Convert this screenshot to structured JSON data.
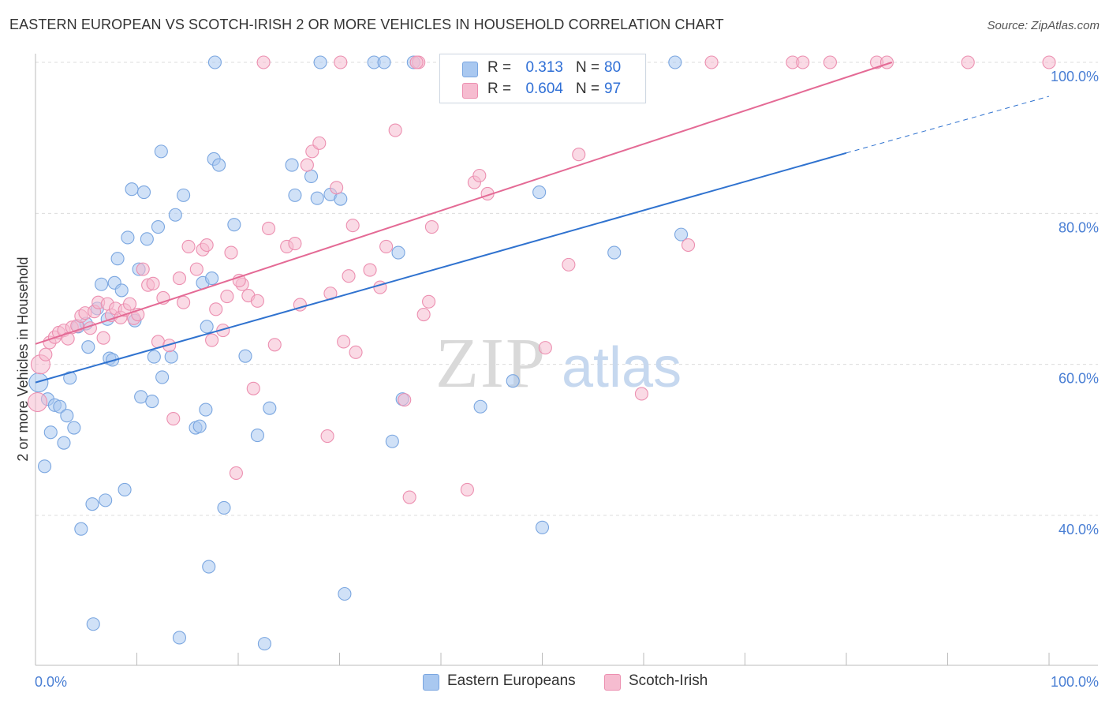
{
  "title": "EASTERN EUROPEAN VS SCOTCH-IRISH 2 OR MORE VEHICLES IN HOUSEHOLD CORRELATION CHART",
  "source": "Source: ZipAtlas.com",
  "watermark": {
    "zip": "ZIP",
    "atlas": "atlas"
  },
  "legend": {
    "rows": [
      {
        "r_label": "R =",
        "r_value": "0.313",
        "n_label": "N =",
        "n_value": "80",
        "color": "#a9c8f0",
        "border": "#7aa6e0"
      },
      {
        "r_label": "R =",
        "r_value": "0.604",
        "n_label": "N =",
        "n_value": "97",
        "color": "#f6bcd0",
        "border": "#ec8fb0"
      }
    ]
  },
  "bottom_legend": [
    {
      "label": "Eastern Europeans",
      "color": "#a9c8f0",
      "border": "#7aa6e0"
    },
    {
      "label": "Scotch-Irish",
      "color": "#f6bcd0",
      "border": "#ec8fb0"
    }
  ],
  "chart_data": {
    "type": "scatter",
    "title": "EASTERN EUROPEAN VS SCOTCH-IRISH 2 OR MORE VEHICLES IN HOUSEHOLD CORRELATION CHART",
    "xlabel": "",
    "ylabel": "2 or more Vehicles in Household",
    "xlim": [
      0,
      100
    ],
    "ylim": [
      23,
      101
    ],
    "x_tick_labels": [
      "0.0%",
      "100.0%"
    ],
    "y_ticks": [
      40,
      60,
      80,
      100
    ],
    "y_tick_labels": [
      "40.0%",
      "60.0%",
      "80.0%",
      "100.0%"
    ],
    "grid": true,
    "series": [
      {
        "name": "Eastern Europeans",
        "color": "#7aa6e0",
        "fill": "#a9c8f0",
        "trend": {
          "x0": 0,
          "y0": 57.6,
          "x1": 80,
          "y1": 88.0,
          "dash_to_x": 100,
          "dash_to_y": 95.5,
          "line_color": "#2f72cf"
        },
        "points": [
          [
            0.3,
            57.6
          ],
          [
            0.9,
            46.5
          ],
          [
            1.2,
            55.4
          ],
          [
            1.5,
            51.0
          ],
          [
            1.9,
            54.6
          ],
          [
            2.4,
            54.4
          ],
          [
            2.8,
            49.6
          ],
          [
            3.1,
            53.2
          ],
          [
            3.4,
            58.2
          ],
          [
            3.8,
            51.6
          ],
          [
            4.2,
            65.0
          ],
          [
            4.5,
            38.2
          ],
          [
            5.0,
            65.4
          ],
          [
            5.2,
            62.3
          ],
          [
            5.6,
            41.5
          ],
          [
            5.7,
            25.6
          ],
          [
            6.1,
            67.4
          ],
          [
            6.5,
            70.6
          ],
          [
            6.9,
            42.0
          ],
          [
            7.1,
            66.0
          ],
          [
            7.3,
            60.8
          ],
          [
            7.6,
            60.6
          ],
          [
            7.8,
            70.8
          ],
          [
            8.1,
            74.0
          ],
          [
            8.5,
            69.8
          ],
          [
            8.8,
            43.4
          ],
          [
            9.1,
            76.8
          ],
          [
            9.5,
            83.2
          ],
          [
            9.8,
            65.8
          ],
          [
            10.2,
            72.6
          ],
          [
            10.4,
            55.7
          ],
          [
            10.7,
            82.8
          ],
          [
            11.0,
            76.6
          ],
          [
            11.5,
            55.1
          ],
          [
            11.7,
            61.0
          ],
          [
            12.1,
            78.2
          ],
          [
            12.4,
            88.2
          ],
          [
            12.5,
            58.3
          ],
          [
            13.4,
            61.0
          ],
          [
            13.8,
            79.8
          ],
          [
            14.2,
            23.8
          ],
          [
            14.6,
            82.4
          ],
          [
            15.8,
            51.6
          ],
          [
            16.2,
            51.8
          ],
          [
            16.5,
            70.8
          ],
          [
            16.8,
            54.0
          ],
          [
            16.9,
            65.0
          ],
          [
            17.1,
            33.2
          ],
          [
            17.4,
            71.4
          ],
          [
            17.6,
            87.2
          ],
          [
            18.1,
            86.4
          ],
          [
            18.6,
            41.0
          ],
          [
            19.6,
            78.5
          ],
          [
            20.7,
            61.1
          ],
          [
            21.9,
            50.6
          ],
          [
            22.6,
            23.0
          ],
          [
            23.1,
            54.2
          ],
          [
            25.3,
            86.4
          ],
          [
            25.6,
            82.4
          ],
          [
            27.2,
            84.9
          ],
          [
            27.8,
            82.0
          ],
          [
            28.1,
            100.0
          ],
          [
            29.1,
            82.5
          ],
          [
            30.1,
            81.9
          ],
          [
            30.5,
            29.6
          ],
          [
            33.4,
            100.0
          ],
          [
            34.4,
            100.0
          ],
          [
            35.2,
            49.8
          ],
          [
            35.8,
            74.8
          ],
          [
            36.2,
            55.4
          ],
          [
            37.3,
            100.0
          ],
          [
            41.0,
            100.0
          ],
          [
            43.9,
            54.4
          ],
          [
            47.1,
            57.8
          ],
          [
            49.7,
            82.8
          ],
          [
            50.0,
            38.4
          ],
          [
            57.1,
            74.8
          ],
          [
            63.7,
            77.2
          ],
          [
            63.1,
            100.0
          ],
          [
            17.7,
            100.0
          ]
        ]
      },
      {
        "name": "Scotch-Irish",
        "color": "#ec8fb0",
        "fill": "#f6bcd0",
        "trend": {
          "x0": 0,
          "y0": 62.7,
          "x1": 84.5,
          "y1": 100.0,
          "line_color": "#e46a95"
        },
        "points": [
          [
            0.2,
            55.0
          ],
          [
            0.5,
            60.0
          ],
          [
            1.0,
            61.3
          ],
          [
            1.4,
            62.9
          ],
          [
            1.9,
            63.6
          ],
          [
            2.3,
            64.2
          ],
          [
            2.8,
            64.5
          ],
          [
            3.2,
            63.4
          ],
          [
            3.6,
            64.9
          ],
          [
            4.1,
            65.1
          ],
          [
            4.5,
            66.4
          ],
          [
            4.9,
            66.8
          ],
          [
            5.4,
            64.8
          ],
          [
            5.8,
            67.0
          ],
          [
            6.2,
            68.2
          ],
          [
            6.7,
            63.5
          ],
          [
            7.1,
            68.0
          ],
          [
            7.5,
            66.5
          ],
          [
            7.9,
            67.4
          ],
          [
            8.4,
            66.2
          ],
          [
            8.8,
            67.2
          ],
          [
            9.3,
            68.0
          ],
          [
            9.7,
            66.1
          ],
          [
            10.1,
            66.6
          ],
          [
            10.6,
            72.6
          ],
          [
            11.1,
            70.5
          ],
          [
            11.6,
            70.7
          ],
          [
            12.1,
            63.0
          ],
          [
            12.6,
            68.8
          ],
          [
            13.2,
            62.5
          ],
          [
            13.6,
            52.8
          ],
          [
            14.2,
            71.4
          ],
          [
            14.6,
            68.2
          ],
          [
            15.1,
            75.6
          ],
          [
            15.9,
            72.6
          ],
          [
            16.5,
            75.2
          ],
          [
            16.9,
            75.8
          ],
          [
            17.4,
            63.2
          ],
          [
            17.8,
            67.3
          ],
          [
            18.5,
            64.5
          ],
          [
            18.9,
            69.0
          ],
          [
            19.3,
            74.8
          ],
          [
            19.8,
            45.6
          ],
          [
            20.4,
            70.6
          ],
          [
            21.0,
            69.1
          ],
          [
            21.5,
            56.8
          ],
          [
            21.9,
            68.4
          ],
          [
            23.0,
            78.0
          ],
          [
            23.6,
            62.6
          ],
          [
            24.8,
            75.6
          ],
          [
            25.6,
            76.0
          ],
          [
            26.1,
            67.9
          ],
          [
            26.8,
            86.4
          ],
          [
            27.3,
            88.2
          ],
          [
            28.0,
            89.3
          ],
          [
            28.8,
            50.5
          ],
          [
            29.1,
            69.4
          ],
          [
            29.7,
            83.4
          ],
          [
            30.4,
            63.0
          ],
          [
            30.9,
            71.7
          ],
          [
            31.3,
            78.4
          ],
          [
            31.6,
            61.6
          ],
          [
            33.0,
            72.5
          ],
          [
            34.0,
            70.2
          ],
          [
            34.6,
            75.6
          ],
          [
            35.5,
            91.0
          ],
          [
            36.4,
            55.3
          ],
          [
            36.9,
            42.4
          ],
          [
            37.8,
            100.0
          ],
          [
            38.3,
            66.6
          ],
          [
            38.8,
            68.3
          ],
          [
            39.1,
            78.2
          ],
          [
            41.1,
            100.0
          ],
          [
            42.6,
            43.4
          ],
          [
            43.3,
            84.1
          ],
          [
            43.8,
            85.0
          ],
          [
            44.6,
            82.6
          ],
          [
            50.3,
            62.2
          ],
          [
            52.6,
            73.2
          ],
          [
            53.6,
            87.8
          ],
          [
            59.8,
            56.1
          ],
          [
            64.4,
            75.8
          ],
          [
            66.7,
            100.0
          ],
          [
            74.7,
            100.0
          ],
          [
            75.7,
            100.0
          ],
          [
            78.4,
            100.0
          ],
          [
            83.0,
            100.0
          ],
          [
            84.0,
            100.0
          ],
          [
            92.0,
            100.0
          ],
          [
            100.0,
            100.0
          ],
          [
            22.5,
            100.0
          ],
          [
            30.1,
            100.0
          ],
          [
            37.6,
            100.0
          ],
          [
            43.0,
            100.0
          ],
          [
            51.5,
            100.0
          ],
          [
            55.2,
            100.0
          ],
          [
            20.1,
            71.1
          ]
        ]
      }
    ]
  }
}
